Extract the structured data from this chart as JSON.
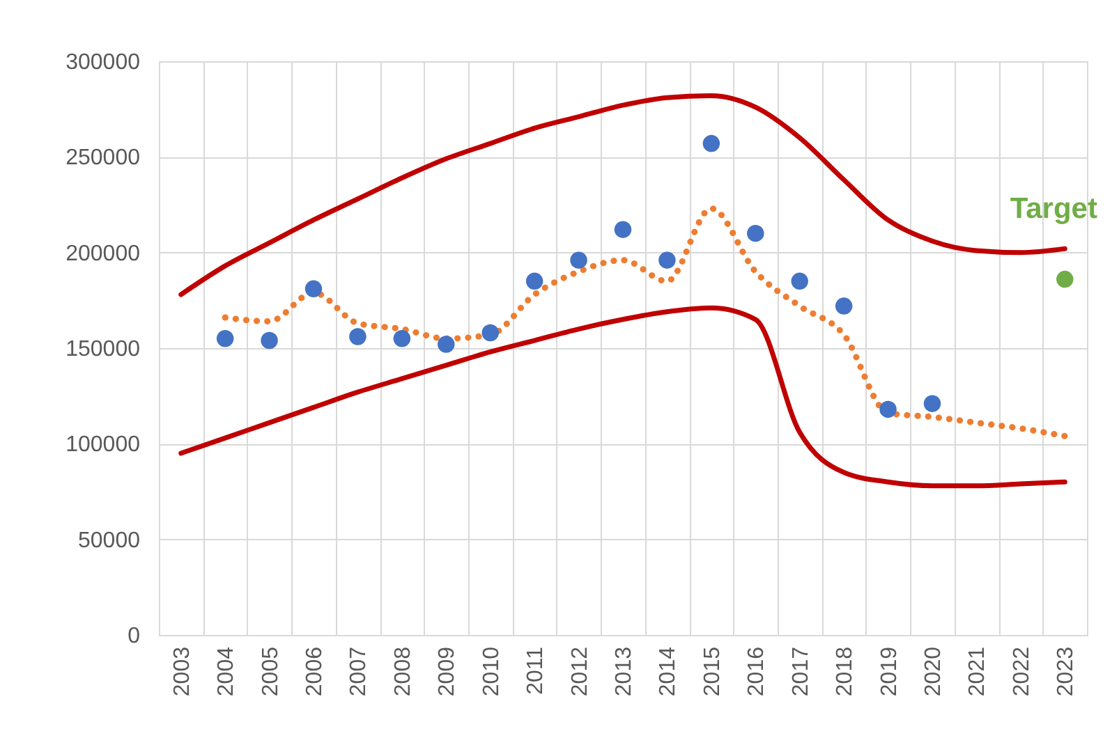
{
  "chart_data": {
    "type": "scatter",
    "categories": [
      "2003",
      "2004",
      "2005",
      "2006",
      "2007",
      "2008",
      "2009",
      "2010",
      "2011",
      "2012",
      "2013",
      "2014",
      "2015",
      "2016",
      "2017",
      "2018",
      "2019",
      "2020",
      "2021",
      "2022",
      "2023"
    ],
    "ylim": [
      0,
      300000
    ],
    "yticks": [
      0,
      50000,
      100000,
      150000,
      200000,
      250000,
      300000
    ],
    "grid": true,
    "series": [
      {
        "type": "line",
        "color": "#c00000",
        "line_style": "solid",
        "marker": "none",
        "values": [
          178000,
          193000,
          205000,
          217000,
          228000,
          239000,
          249000,
          257000,
          265000,
          271000,
          277000,
          281000,
          282000,
          276000,
          260000,
          238000,
          217000,
          206000,
          201000,
          200000,
          202000
        ]
      },
      {
        "type": "line",
        "color": "#c00000",
        "line_style": "solid",
        "marker": "none",
        "values": [
          95000,
          103000,
          111000,
          119000,
          127000,
          134000,
          141000,
          148000,
          154000,
          160000,
          165000,
          169000,
          171000,
          165000,
          106000,
          85000,
          80000,
          78000,
          78000,
          79000,
          80000
        ]
      },
      {
        "type": "line",
        "color": "#ed7d31",
        "line_style": "dotted",
        "marker": "none",
        "values": [
          null,
          166000,
          164000,
          179000,
          163000,
          160000,
          155000,
          157000,
          178000,
          190000,
          196000,
          185000,
          223000,
          190000,
          172000,
          157000,
          116000,
          114000,
          111000,
          108000,
          104000
        ]
      },
      {
        "color": "#4472c4",
        "marker": "circle",
        "values": [
          null,
          155000,
          154000,
          181000,
          156000,
          155000,
          152000,
          158000,
          185000,
          196000,
          212000,
          196000,
          257000,
          210000,
          185000,
          172000,
          118000,
          121000,
          null,
          null,
          null
        ]
      },
      {
        "name": "Target",
        "color": "#70ad47",
        "marker": "circle",
        "values": [
          null,
          null,
          null,
          null,
          null,
          null,
          null,
          null,
          null,
          null,
          null,
          null,
          null,
          null,
          null,
          null,
          null,
          null,
          null,
          null,
          186000
        ]
      }
    ]
  }
}
